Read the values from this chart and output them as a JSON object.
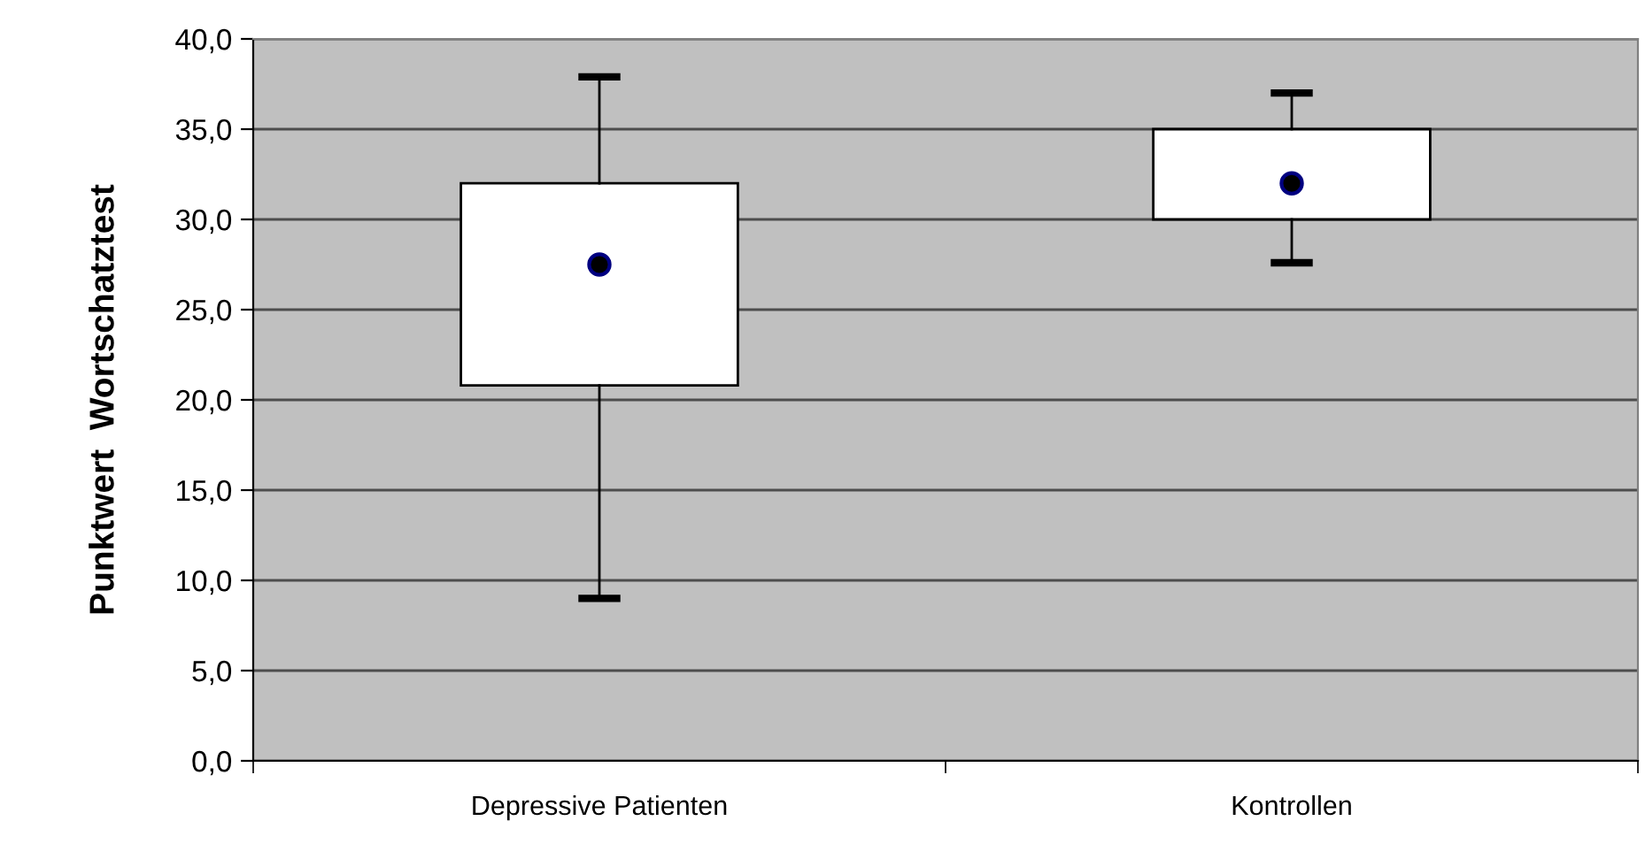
{
  "chart_data": {
    "type": "box",
    "ylabel": "Punktwert  Wortschatztest",
    "categories": [
      "Depressive Patienten",
      "Kontrollen"
    ],
    "boxes": [
      {
        "low": 9.0,
        "q1": 20.8,
        "median": 27.5,
        "q3": 32.0,
        "high": 37.9
      },
      {
        "low": 27.6,
        "q1": 30.0,
        "median": 32.0,
        "q3": 35.0,
        "high": 37.0
      }
    ],
    "color": "#ffffff",
    "ylim": [
      0,
      40
    ],
    "yticks": [
      {
        "value": 0,
        "label": "0,0"
      },
      {
        "value": 5,
        "label": "5,0"
      },
      {
        "value": 10,
        "label": "10,0"
      },
      {
        "value": 15,
        "label": "15,0"
      },
      {
        "value": 20,
        "label": "20,0"
      },
      {
        "value": 25,
        "label": "25,0"
      },
      {
        "value": 30,
        "label": "30,0"
      },
      {
        "value": 35,
        "label": "35,0"
      },
      {
        "value": 40,
        "label": "40,0"
      }
    ],
    "grid": "y",
    "legend": false
  }
}
